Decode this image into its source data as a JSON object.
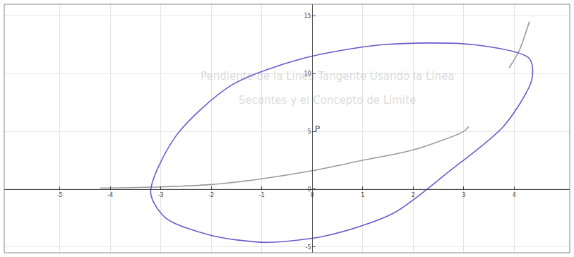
{
  "chart_data": {
    "type": "line",
    "grid": true,
    "xlim": [
      -6.1,
      5.1
    ],
    "ylim": [
      -5.5,
      16
    ],
    "xticks": [
      -5,
      -4,
      -3,
      -2,
      -1,
      0,
      1,
      2,
      3,
      4
    ],
    "yticks": [
      -5,
      0,
      5,
      10,
      15
    ],
    "annotations": [
      {
        "text": "P",
        "x": 0.1,
        "y": 5.2
      },
      {
        "text": "Pendiente de la Línea Tangente Usando la Línea",
        "x": 0.3,
        "y": 9.8
      },
      {
        "text": "Secantes y el Concepto de Límite",
        "x": 0.3,
        "y": 7.7
      }
    ],
    "series": [
      {
        "color": "#9a9a9a",
        "x": [
          -4.2,
          -3,
          -2,
          -1,
          0,
          1,
          2,
          3,
          3.1,
          null,
          3.9,
          4.1,
          4.3
        ],
        "values": [
          0.1,
          0.2,
          0.4,
          0.9,
          1.6,
          2.5,
          3.4,
          5,
          5.4,
          null,
          10.5,
          12,
          14.5
        ]
      },
      {
        "color": "#6a5acd",
        "x": [
          -3.2,
          -2.7,
          -1.6,
          -0.2,
          1.4,
          3.2,
          4.3,
          4.35,
          3.8,
          2.7,
          1.6,
          0.3,
          -0.9,
          -2.0,
          -2.9,
          -3.2
        ],
        "values": [
          -0.3,
          4.6,
          9,
          11.3,
          12.5,
          12.5,
          11.3,
          9.5,
          5.5,
          1.5,
          -2.1,
          -4,
          -4.6,
          -4,
          -2.5,
          -0.3
        ]
      }
    ]
  }
}
